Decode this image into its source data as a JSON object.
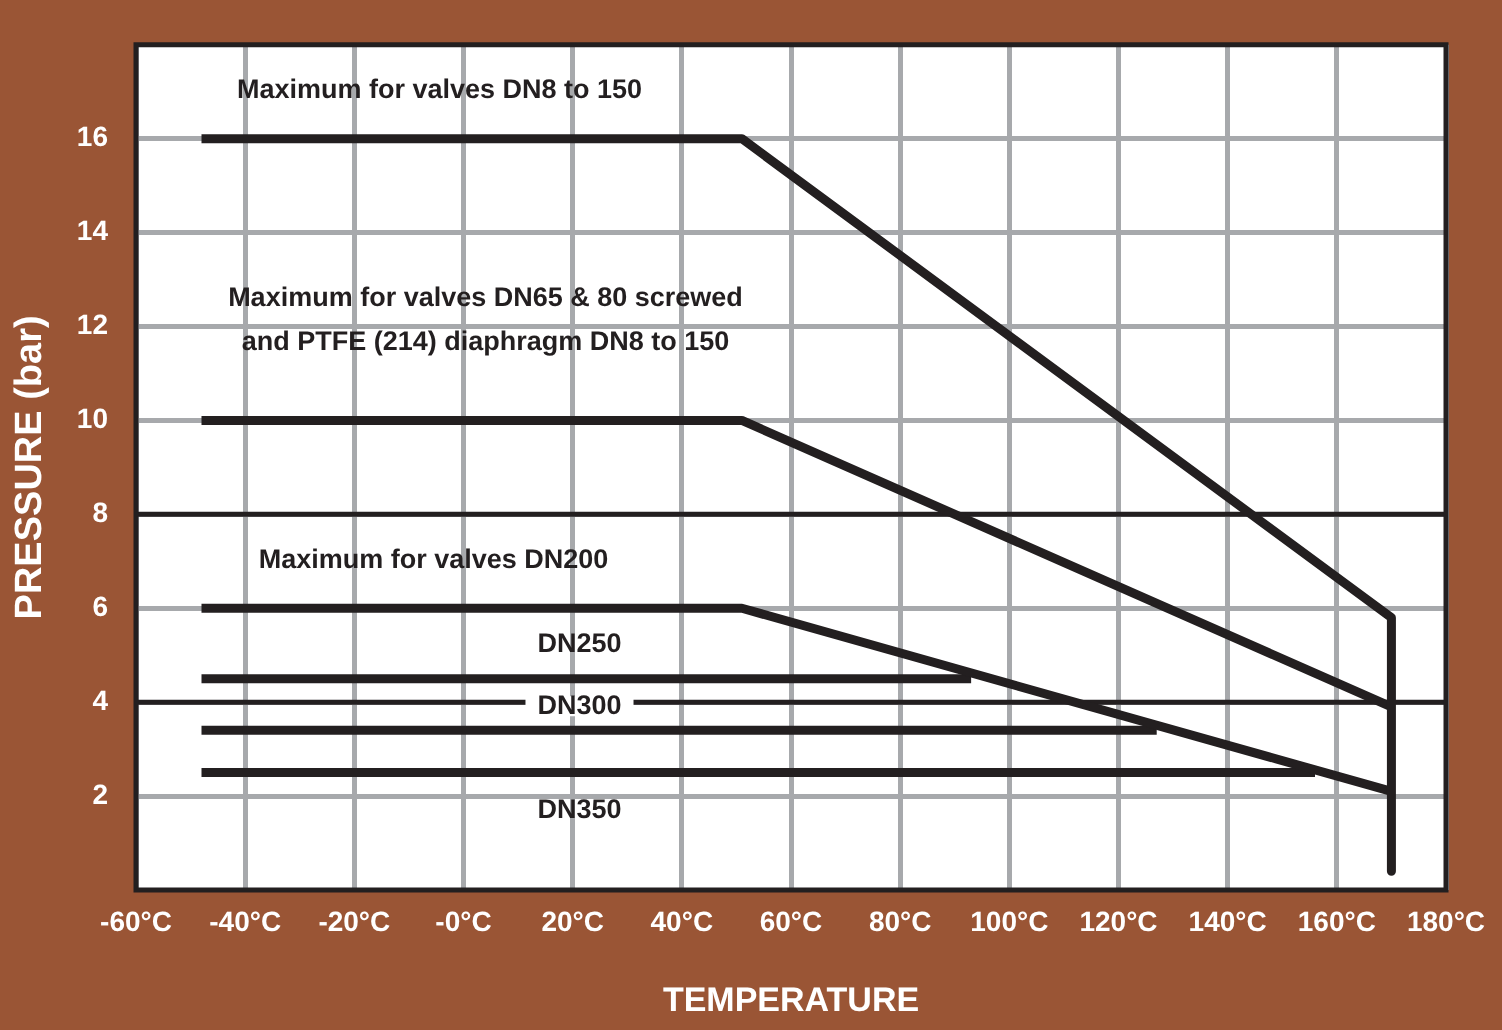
{
  "chart_data": {
    "type": "line",
    "xlabel": "TEMPERATURE",
    "ylabel": "PRESSURE (bar)",
    "xlim": [
      -60,
      180
    ],
    "ylim": [
      0,
      18
    ],
    "xticks": [
      {
        "value": -60,
        "label": "-60°C"
      },
      {
        "value": -40,
        "label": "-40°C"
      },
      {
        "value": -20,
        "label": "-20°C"
      },
      {
        "value": 0,
        "label": "-0°C"
      },
      {
        "value": 20,
        "label": "20°C"
      },
      {
        "value": 40,
        "label": "40°C"
      },
      {
        "value": 60,
        "label": "60°C"
      },
      {
        "value": 80,
        "label": "80°C"
      },
      {
        "value": 100,
        "label": "100°C"
      },
      {
        "value": 120,
        "label": "120°C"
      },
      {
        "value": 140,
        "label": "140°C"
      },
      {
        "value": 160,
        "label": "160°C"
      },
      {
        "value": 180,
        "label": "180°C"
      }
    ],
    "yticks": [
      2,
      4,
      6,
      8,
      10,
      12,
      14,
      16
    ],
    "grid": true,
    "legend": false,
    "marker": "none",
    "line_style": "solid",
    "ref_lines": [
      {
        "axis": "y",
        "value": 8,
        "color": "#231f20"
      },
      {
        "axis": "y",
        "value": 4,
        "color": "#231f20"
      }
    ],
    "series": [
      {
        "name": "Maximum for valves DN8 to 150",
        "color": "#231f20",
        "x": [
          -48,
          51,
          170,
          170
        ],
        "values": [
          16,
          16,
          5.8,
          0.4
        ]
      },
      {
        "name": "Maximum for valves DN65 & 80 screwed\nand PTFE (214) diaphragm DN8 to 150",
        "color": "#231f20",
        "x": [
          -48,
          51,
          170
        ],
        "values": [
          10,
          10,
          3.9
        ]
      },
      {
        "name": "Maximum for valves DN200",
        "color": "#231f20",
        "x": [
          -48,
          51,
          170
        ],
        "values": [
          6,
          6,
          2.1
        ]
      },
      {
        "name": "DN250",
        "color": "#231f20",
        "x": [
          -48,
          93
        ],
        "values": [
          4.5,
          4.5
        ]
      },
      {
        "name": "DN300",
        "color": "#231f20",
        "x": [
          -48,
          127
        ],
        "values": [
          3.4,
          3.4
        ]
      },
      {
        "name": "DN350",
        "color": "#231f20",
        "x": [
          -48,
          156
        ],
        "values": [
          2.5,
          2.5
        ]
      }
    ]
  }
}
